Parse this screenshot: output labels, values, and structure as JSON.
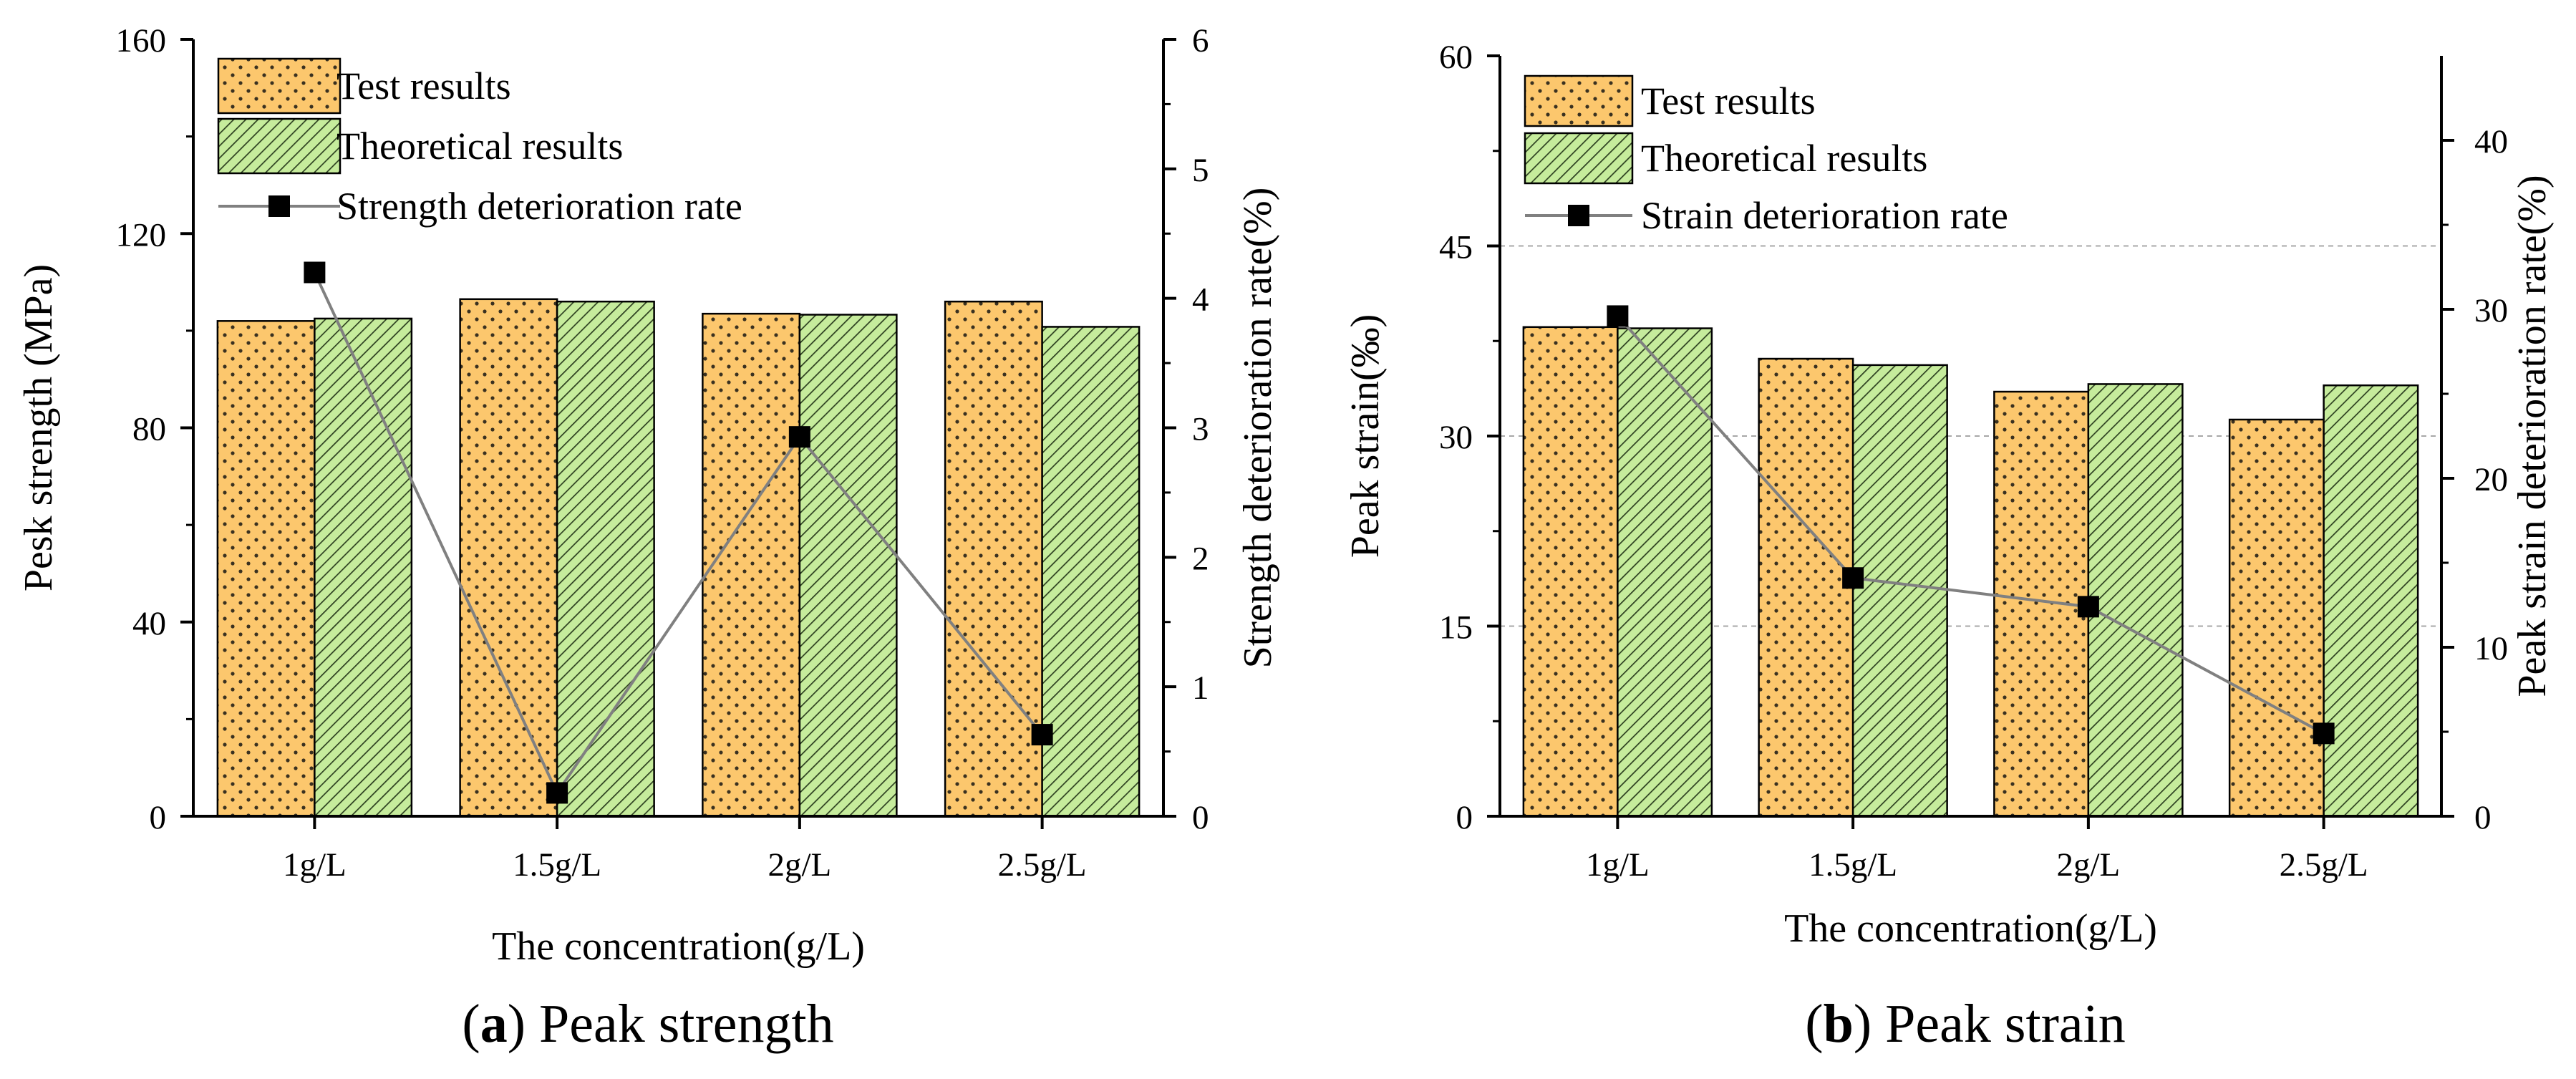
{
  "colors": {
    "test_fill": "#fcc76d",
    "test_dots": "#3a3120",
    "theory_fill": "#c6ec9c",
    "theory_hatch": "#2c3f1f",
    "rate_line": "#808080",
    "rate_marker": "#000000",
    "grid": "#a8a8a8"
  },
  "chart_data": [
    {
      "type": "bar",
      "panel": "a",
      "caption_letter": "a",
      "caption_text": "Peak strength",
      "categories": [
        "1g/L",
        "1.5g/L",
        "2g/L",
        "2.5g/L"
      ],
      "series": [
        {
          "name": "Test results",
          "axis": "left",
          "values": [
            102,
            106.5,
            103.5,
            106
          ]
        },
        {
          "name": "Theoretical results",
          "axis": "left",
          "values": [
            102.5,
            106,
            103.3,
            100.8
          ]
        },
        {
          "name": "Strength deterioration rate",
          "axis": "right",
          "kind": "line",
          "values": [
            4.2,
            0.18,
            2.93,
            0.63
          ]
        }
      ],
      "xlabel": "The concentration(g/L)",
      "ylabel": "Pesk strength (MPa)",
      "y2label": "Strength deterioration rate(%)",
      "ylim": [
        0,
        160
      ],
      "yticks": [
        0,
        40,
        80,
        120,
        160
      ],
      "y2lim": [
        0,
        6
      ],
      "y2ticks": [
        0,
        1,
        2,
        3,
        4,
        5,
        6
      ],
      "grid": false,
      "legend_position": "top-left"
    },
    {
      "type": "bar",
      "panel": "b",
      "caption_letter": "b",
      "caption_text": "Peak strain",
      "categories": [
        "1g/L",
        "1.5g/L",
        "2g/L",
        "2.5g/L"
      ],
      "series": [
        {
          "name": "Test results",
          "axis": "left",
          "values": [
            38.6,
            36.1,
            33.5,
            31.3
          ]
        },
        {
          "name": "Theoretical results",
          "axis": "left",
          "values": [
            38.5,
            35.6,
            34.1,
            34.0
          ]
        },
        {
          "name": "Strain deterioration rate",
          "axis": "right",
          "kind": "line",
          "values": [
            29.6,
            14.1,
            12.4,
            4.9
          ]
        }
      ],
      "xlabel": "The concentration(g/L)",
      "ylabel": "Peak strain(‰)",
      "y2label": "Peak strain deterioration rate(%)",
      "ylim": [
        0,
        60
      ],
      "yticks": [
        0,
        15,
        30,
        45,
        60
      ],
      "y2lim": [
        0,
        45
      ],
      "y2ticks": [
        0,
        10,
        20,
        30,
        40
      ],
      "grid": true,
      "legend_position": "top-left"
    }
  ]
}
